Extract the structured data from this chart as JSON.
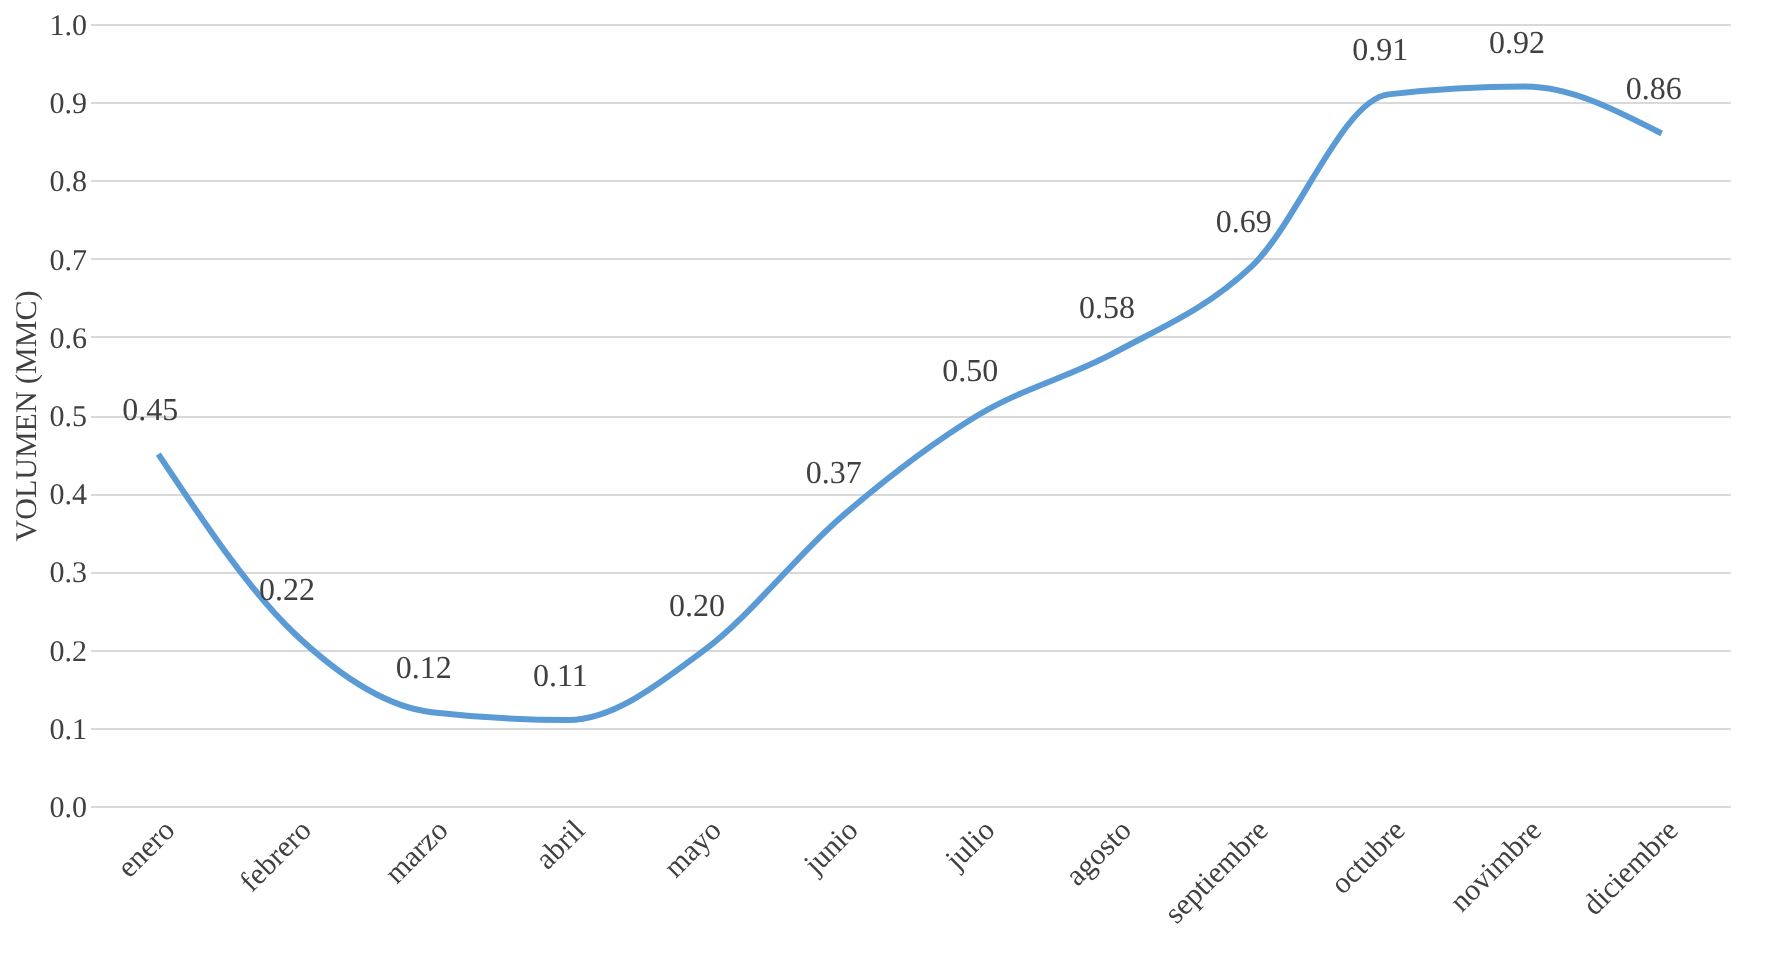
{
  "chart_data": {
    "type": "line",
    "ylabel": "VOLUMEN (MMC)",
    "categories": [
      "enero",
      "febrero",
      "marzo",
      "abril",
      "mayo",
      "junio",
      "julio",
      "agosto",
      "septiembre",
      "octubre",
      "novimbre",
      "diciembre"
    ],
    "series": [
      {
        "color": "#5b9bd5",
        "values": [
          0.45,
          0.22,
          0.12,
          0.11,
          0.2,
          0.37,
          0.5,
          0.58,
          0.69,
          0.91,
          0.92,
          0.86
        ],
        "value_labels": [
          "0.45",
          "0.22",
          "0.12",
          "0.11",
          "0.20",
          "0.37",
          "0.50",
          "0.58",
          "0.69",
          "0.91",
          "0.92",
          "0.86"
        ]
      }
    ],
    "ylim": [
      0,
      1
    ],
    "yticks": [
      {
        "value": 0,
        "label": "0.0"
      },
      0.1,
      0.2,
      0.3,
      0.4,
      0.5,
      0.6,
      0.7,
      0.8,
      0.9,
      {
        "value": 1,
        "label": "1.0"
      }
    ],
    "grid": "y",
    "marker": "none",
    "line_style": "solid",
    "legend": false
  }
}
